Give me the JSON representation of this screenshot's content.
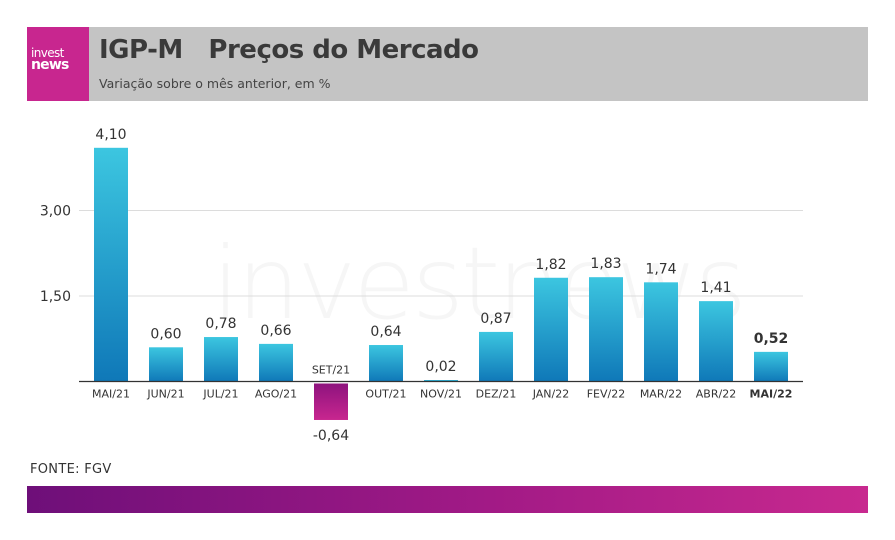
{
  "header": {
    "logo_line1": "invest",
    "logo_line2": "news",
    "title": "IGP-M   Preços do Mercado",
    "subtitle": "Variação sobre o mês anterior, em %"
  },
  "watermark": "investnews",
  "source": "FONTE: FGV",
  "colors": {
    "header_bg": "#c4c4c4",
    "brand": "#c8268f",
    "bar_positive_top": "#3cc6e0",
    "bar_positive_bottom": "#0f78b8",
    "bar_negative_top": "#8e137e",
    "bar_negative_bottom": "#c8268f"
  },
  "chart_data": {
    "type": "bar",
    "categories": [
      "MAI/21",
      "JUN/21",
      "JUL/21",
      "AGO/21",
      "SET/21",
      "OUT/21",
      "NOV/21",
      "DEZ/21",
      "JAN/22",
      "FEV/22",
      "MAR/22",
      "ABR/22",
      "MAI/22"
    ],
    "values": [
      4.1,
      0.6,
      0.78,
      0.66,
      -0.64,
      0.64,
      0.02,
      0.87,
      1.82,
      1.83,
      1.74,
      1.41,
      0.52
    ],
    "value_labels": [
      "4,10",
      "0,60",
      "0,78",
      "0,66",
      "-0,64",
      "0,64",
      "0,02",
      "0,87",
      "1,82",
      "1,83",
      "1,74",
      "1,41",
      "0,52"
    ],
    "y_ticks": [
      1.5,
      3.0
    ],
    "y_tick_labels": [
      "1,50",
      "3,00"
    ],
    "highlight_index": 12,
    "grid": true,
    "legend": "none"
  }
}
